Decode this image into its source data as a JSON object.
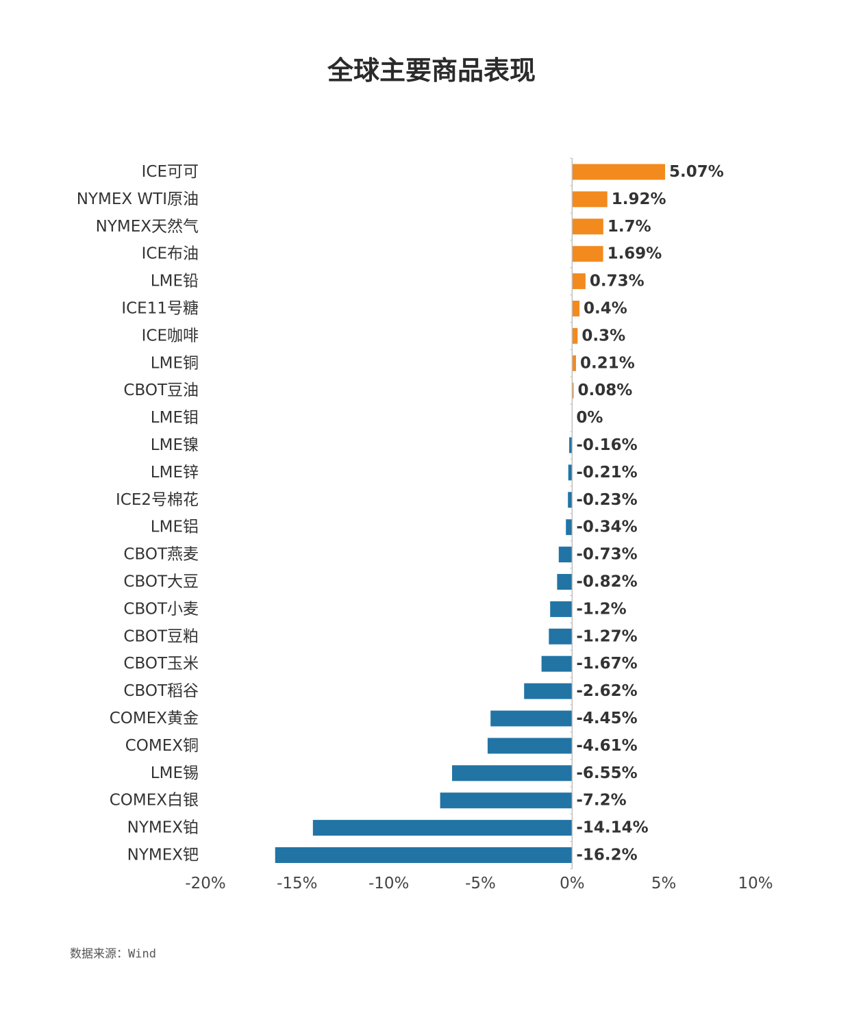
{
  "chart_data": {
    "type": "bar",
    "orientation": "horizontal",
    "title": "全球主要商品表现",
    "categories": [
      "ICE可可",
      "NYMEX WTI原油",
      "NYMEX天然气",
      "ICE布油",
      "LME铅",
      "ICE11号糖",
      "ICE咖啡",
      "LME铜",
      "CBOT豆油",
      "LME钼",
      "LME镍",
      "LME锌",
      "ICE2号棉花",
      "LME铝",
      "CBOT燕麦",
      "CBOT大豆",
      "CBOT小麦",
      "CBOT豆粕",
      "CBOT玉米",
      "CBOT稻谷",
      "COMEX黄金",
      "COMEX铜",
      "LME锡",
      "COMEX白银",
      "NYMEX铂",
      "NYMEX钯"
    ],
    "values": [
      5.07,
      1.92,
      1.7,
      1.69,
      0.73,
      0.4,
      0.3,
      0.21,
      0.08,
      0,
      -0.16,
      -0.21,
      -0.23,
      -0.34,
      -0.73,
      -0.82,
      -1.2,
      -1.27,
      -1.67,
      -2.62,
      -4.45,
      -4.61,
      -6.55,
      -7.2,
      -14.14,
      -16.2
    ],
    "value_labels": [
      "5.07%",
      "1.92%",
      "1.7%",
      "1.69%",
      "0.73%",
      "0.4%",
      "0.3%",
      "0.21%",
      "0.08%",
      "0%",
      "-0.16%",
      "-0.21%",
      "-0.23%",
      "-0.34%",
      "-0.73%",
      "-0.82%",
      "-1.2%",
      "-1.27%",
      "-1.67%",
      "-2.62%",
      "-4.45%",
      "-4.61%",
      "-6.55%",
      "-7.2%",
      "-14.14%",
      "-16.2%"
    ],
    "x_ticks": [
      "-20%",
      "-15%",
      "-10%",
      "-5%",
      "0%",
      "5%",
      "10%"
    ],
    "x_tick_values": [
      -20,
      -15,
      -10,
      -5,
      0,
      5,
      10
    ],
    "xlim": [
      -20,
      10
    ],
    "grid": false,
    "legend": "none",
    "colors": {
      "positive": "#f28a1e",
      "negative": "#2274a5",
      "axis": "#bfbfbf"
    }
  },
  "source_note": "数据来源：Wind"
}
